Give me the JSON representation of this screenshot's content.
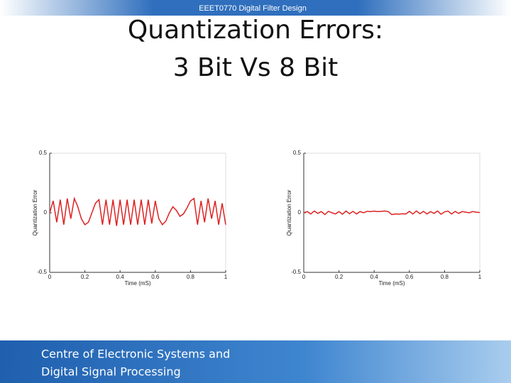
{
  "header": "EEET0770 Digital Filter Design",
  "title_lines": [
    "Quantization Errors:",
    "3 Bit Vs 8 Bit"
  ],
  "footer_lines": [
    "Centre of Electronic Systems and",
    "Digital Signal Processing"
  ],
  "chart_data": [
    {
      "type": "line",
      "xlabel": "Time (mS)",
      "ylabel": "Quantization Error",
      "color": "#dd2222",
      "xlim": [
        0,
        1
      ],
      "ylim": [
        -0.5,
        0.5
      ],
      "xticks": [
        0,
        0.2,
        0.4,
        0.6,
        0.8,
        1
      ],
      "yticks": [
        -0.5,
        0,
        0.5
      ],
      "x": [
        0,
        0.02,
        0.04,
        0.06,
        0.08,
        0.1,
        0.12,
        0.14,
        0.16,
        0.18,
        0.2,
        0.22,
        0.24,
        0.26,
        0.28,
        0.3,
        0.32,
        0.34,
        0.36,
        0.38,
        0.4,
        0.42,
        0.44,
        0.46,
        0.48,
        0.5,
        0.52,
        0.54,
        0.56,
        0.58,
        0.6,
        0.62,
        0.64,
        0.66,
        0.68,
        0.7,
        0.72,
        0.74,
        0.76,
        0.78,
        0.8,
        0.82,
        0.84,
        0.86,
        0.88,
        0.9,
        0.92,
        0.94,
        0.96,
        0.98,
        1
      ],
      "values": [
        0,
        0.1,
        -0.08,
        0.11,
        -0.1,
        0.12,
        -0.05,
        0.12,
        0.05,
        -0.05,
        -0.1,
        -0.08,
        0,
        0.08,
        0.11,
        -0.1,
        0.11,
        -0.1,
        0.11,
        -0.11,
        0.11,
        -0.1,
        0.11,
        -0.1,
        0.11,
        -0.1,
        0.11,
        -0.1,
        0.11,
        -0.09,
        0.1,
        -0.05,
        -0.1,
        -0.07,
        0,
        0.05,
        0.02,
        -0.03,
        -0.01,
        0.04,
        0.1,
        0.12,
        -0.1,
        0.1,
        -0.08,
        0.12,
        -0.05,
        0.1,
        -0.1,
        0.08,
        -0.1
      ]
    },
    {
      "type": "line",
      "xlabel": "Time (mS)",
      "ylabel": "Quantization Error",
      "color": "#dd2222",
      "xlim": [
        0,
        1
      ],
      "ylim": [
        -0.5,
        0.5
      ],
      "xticks": [
        0,
        0.2,
        0.4,
        0.6,
        0.8,
        1
      ],
      "yticks": [
        -0.5,
        0,
        0.5
      ],
      "x": [
        0,
        0.02,
        0.04,
        0.06,
        0.08,
        0.1,
        0.12,
        0.14,
        0.16,
        0.18,
        0.2,
        0.22,
        0.24,
        0.26,
        0.28,
        0.3,
        0.32,
        0.34,
        0.36,
        0.38,
        0.4,
        0.42,
        0.44,
        0.46,
        0.48,
        0.5,
        0.52,
        0.54,
        0.56,
        0.58,
        0.6,
        0.62,
        0.64,
        0.66,
        0.68,
        0.7,
        0.72,
        0.74,
        0.76,
        0.78,
        0.8,
        0.82,
        0.84,
        0.86,
        0.88,
        0.9,
        0.92,
        0.94,
        0.96,
        0.98,
        1
      ],
      "values": [
        0,
        0.01,
        -0.01,
        0.015,
        -0.005,
        0.01,
        -0.015,
        0.012,
        0,
        -0.01,
        0.01,
        -0.012,
        0.015,
        -0.008,
        0.012,
        -0.01,
        0.01,
        0,
        0.012,
        0.01,
        0.014,
        0.01,
        0.012,
        0.015,
        0.01,
        -0.015,
        -0.01,
        -0.012,
        -0.008,
        -0.01,
        0.012,
        -0.01,
        0.015,
        -0.008,
        0.012,
        -0.01,
        0.01,
        -0.005,
        0.015,
        -0.012,
        0.008,
        0.014,
        -0.01,
        0.012,
        -0.005,
        0.01,
        0.005,
        0,
        0.01,
        0.005,
        0.002
      ]
    }
  ]
}
